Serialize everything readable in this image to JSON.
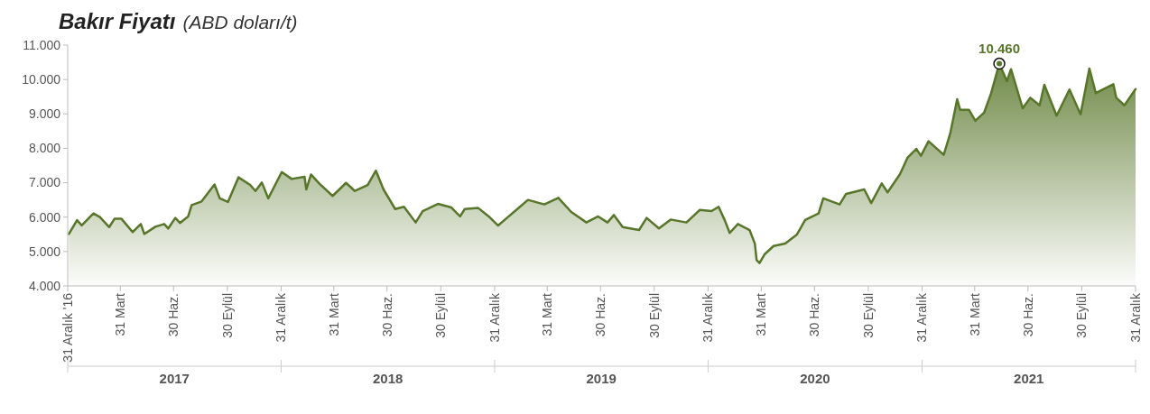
{
  "chart_data": {
    "type": "area",
    "title": "Bakır Fiyatı",
    "subtitle": "(ABD doları/t)",
    "annotations": [
      "2017",
      "2018",
      "2019",
      "2020",
      "2021",
      {
        "text": "10.460",
        "x": "2021-05-12",
        "y": 10460
      }
    ],
    "x": [
      "2017-01-02",
      "2017-01-16",
      "2017-01-24",
      "2017-02-13",
      "2017-02-24",
      "2017-03-12",
      "2017-03-21",
      "2017-04-02",
      "2017-04-21",
      "2017-05-05",
      "2017-05-11",
      "2017-05-30",
      "2017-06-14",
      "2017-06-21",
      "2017-07-03",
      "2017-07-11",
      "2017-07-25",
      "2017-07-31",
      "2017-08-17",
      "2017-09-08",
      "2017-09-17",
      "2017-10-01",
      "2017-10-19",
      "2017-11-08",
      "2017-11-17",
      "2017-11-28",
      "2017-12-09",
      "2018-01-01",
      "2018-01-18",
      "2018-02-09",
      "2018-02-12",
      "2018-02-20",
      "2018-03-06",
      "2018-03-29",
      "2018-04-21",
      "2018-05-06",
      "2018-05-28",
      "2018-06-11",
      "2018-06-24",
      "2018-07-14",
      "2018-07-29",
      "2018-08-18",
      "2018-08-30",
      "2018-09-25",
      "2018-10-18",
      "2018-11-02",
      "2018-11-10",
      "2018-12-03",
      "2018-12-21",
      "2019-01-06",
      "2019-01-21",
      "2019-02-11",
      "2019-02-26",
      "2019-03-26",
      "2019-04-19",
      "2019-05-11",
      "2019-06-06",
      "2019-06-26",
      "2019-07-12",
      "2019-07-23",
      "2019-08-07",
      "2019-09-04",
      "2019-09-17",
      "2019-10-08",
      "2019-10-28",
      "2019-11-24",
      "2019-12-17",
      "2020-01-06",
      "2020-01-18",
      "2020-01-28",
      "2020-02-06",
      "2020-02-20",
      "2020-03-11",
      "2020-03-20",
      "2020-03-23",
      "2020-03-28",
      "2020-04-06",
      "2020-04-21",
      "2020-05-11",
      "2020-05-31",
      "2020-06-14",
      "2020-07-07",
      "2020-07-15",
      "2020-08-12",
      "2020-08-23",
      "2020-09-23",
      "2020-10-05",
      "2020-10-23",
      "2020-11-02",
      "2020-11-23",
      "2020-12-06",
      "2020-12-21",
      "2020-12-29",
      "2021-01-11",
      "2021-02-06",
      "2021-02-17",
      "2021-03-01",
      "2021-03-06",
      "2021-03-21",
      "2021-04-01",
      "2021-04-16",
      "2021-04-28",
      "2021-05-12",
      "2021-05-25",
      "2021-06-01",
      "2021-06-21",
      "2021-07-04",
      "2021-07-20",
      "2021-07-28",
      "2021-08-18",
      "2021-09-09",
      "2021-09-28",
      "2021-10-13",
      "2021-10-24",
      "2021-11-23",
      "2021-11-28",
      "2021-12-12",
      "2021-12-31"
    ],
    "series": [
      {
        "color": "#587629",
        "values": [
          5510,
          5910,
          5760,
          6105,
          6000,
          5710,
          5950,
          5950,
          5565,
          5800,
          5510,
          5720,
          5800,
          5670,
          5975,
          5830,
          6020,
          6350,
          6455,
          6950,
          6545,
          6440,
          7155,
          6935,
          6760,
          7005,
          6545,
          7310,
          7110,
          7170,
          6805,
          7240,
          6980,
          6615,
          6995,
          6760,
          6935,
          7350,
          6805,
          6235,
          6300,
          5845,
          6175,
          6385,
          6280,
          6020,
          6235,
          6265,
          6020,
          5755,
          5975,
          6280,
          6500,
          6370,
          6560,
          6150,
          5845,
          6020,
          5845,
          6060,
          5710,
          5625,
          5975,
          5670,
          5930,
          5845,
          6210,
          6175,
          6300,
          5930,
          5540,
          5800,
          5625,
          5230,
          4750,
          4665,
          4925,
          5160,
          5230,
          5495,
          5915,
          6105,
          6545,
          6370,
          6675,
          6805,
          6410,
          6980,
          6720,
          7245,
          7725,
          7985,
          7785,
          8205,
          7810,
          8425,
          9425,
          9120,
          9120,
          8800,
          9035,
          9600,
          10460,
          9950,
          10300,
          9165,
          9470,
          9250,
          9845,
          8950,
          9710,
          8990,
          10320,
          9605,
          9865,
          9470,
          9250,
          9720
        ]
      }
    ],
    "xlim": [
      "2016-12-31",
      "2021-12-31"
    ],
    "xticks": [
      {
        "value": "2016-12-31",
        "label": "31 Aralık '16"
      },
      {
        "value": "2017-03-31",
        "label": "31 Mart"
      },
      {
        "value": "2017-06-30",
        "label": "30 Haz."
      },
      {
        "value": "2017-09-30",
        "label": "30 Eylül"
      },
      {
        "value": "2017-12-31",
        "label": "31 Aralık"
      },
      {
        "value": "2018-03-31",
        "label": "31 Mart"
      },
      {
        "value": "2018-06-30",
        "label": "30 Haz."
      },
      {
        "value": "2018-09-30",
        "label": "30 Eylül"
      },
      {
        "value": "2018-12-31",
        "label": "31 Aralık"
      },
      {
        "value": "2019-03-31",
        "label": "31 Mart"
      },
      {
        "value": "2019-06-30",
        "label": "30 Haz."
      },
      {
        "value": "2019-09-30",
        "label": "30 Eylül"
      },
      {
        "value": "2019-12-31",
        "label": "31 Aralık"
      },
      {
        "value": "2020-03-31",
        "label": "31 Mart"
      },
      {
        "value": "2020-06-30",
        "label": "30 Haz."
      },
      {
        "value": "2020-09-30",
        "label": "30 Eylül"
      },
      {
        "value": "2020-12-31",
        "label": "31 Aralık"
      },
      {
        "value": "2021-03-31",
        "label": "31 Mart"
      },
      {
        "value": "2021-06-30",
        "label": "30 Haz."
      },
      {
        "value": "2021-09-30",
        "label": "30 Eylül"
      },
      {
        "value": "2021-12-31",
        "label": "31 Aralık"
      }
    ],
    "ylim": [
      4000,
      11000
    ],
    "yticks": [
      {
        "value": 4000,
        "label": "4.000"
      },
      {
        "value": 5000,
        "label": "5.000"
      },
      {
        "value": 6000,
        "label": "6.000"
      },
      {
        "value": 7000,
        "label": "7.000"
      },
      {
        "value": 8000,
        "label": "8.000"
      },
      {
        "value": 9000,
        "label": "9.000"
      },
      {
        "value": 10000,
        "label": "10.000"
      },
      {
        "value": 11000,
        "label": "11.000"
      }
    ]
  }
}
